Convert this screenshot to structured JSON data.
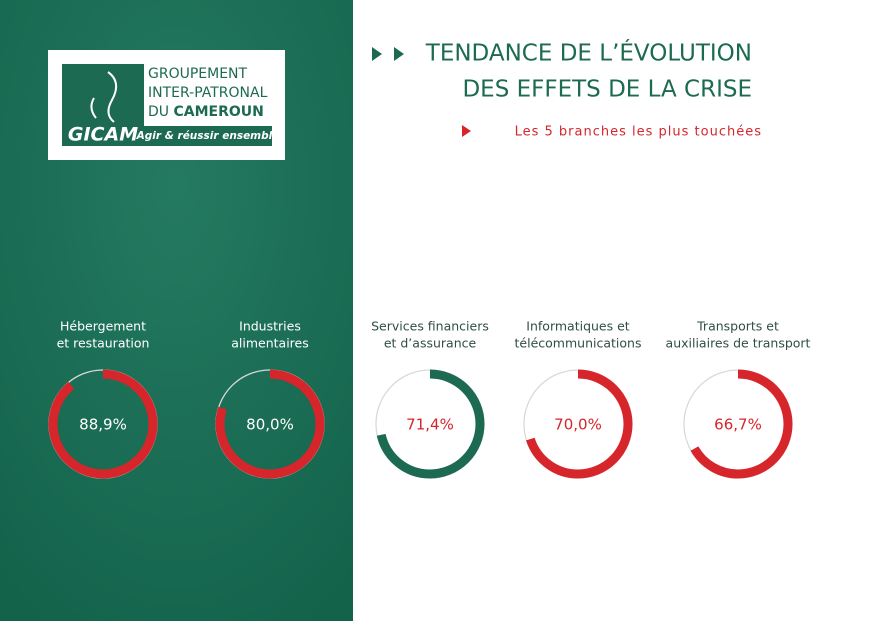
{
  "logo": {
    "lines": [
      "GROUPEMENT",
      "INTER-PATRONAL",
      "DU"
    ],
    "bold": "CAMEROUN",
    "name": "GICAM",
    "slogan": "Agir & réussir ensemble"
  },
  "header": {
    "title_lines": [
      "TENDANCE DE L’ÉVOLUTION",
      "DES EFFETS DE LA CRISE"
    ],
    "subtitle": "Les 5 branches les plus touchées"
  },
  "chart_data": [
    {
      "type": "donut",
      "title": [
        "Hébergement",
        "et restauration"
      ],
      "values": [
        88.9
      ],
      "value_labels": [
        "88,9%"
      ],
      "color": "#d6252b"
    },
    {
      "type": "donut",
      "title": [
        "Industries",
        "alimentaires"
      ],
      "values": [
        80.0
      ],
      "value_labels": [
        "80,0%"
      ],
      "color": "#d6252b"
    },
    {
      "type": "donut",
      "title": [
        "Services financiers",
        "et d’assurance"
      ],
      "values": [
        71.4
      ],
      "value_labels": [
        "71,4%"
      ],
      "color": "#1d6a52"
    },
    {
      "type": "donut",
      "title": [
        "Informatiques et",
        "télécommunications"
      ],
      "values": [
        70.0
      ],
      "value_labels": [
        "70,0%"
      ],
      "color": "#d6252b"
    },
    {
      "type": "donut",
      "title": [
        "Transports et",
        "auxiliaires de transport"
      ],
      "values": [
        66.7
      ],
      "value_labels": [
        "66,7%"
      ],
      "color": "#d6252b"
    }
  ]
}
